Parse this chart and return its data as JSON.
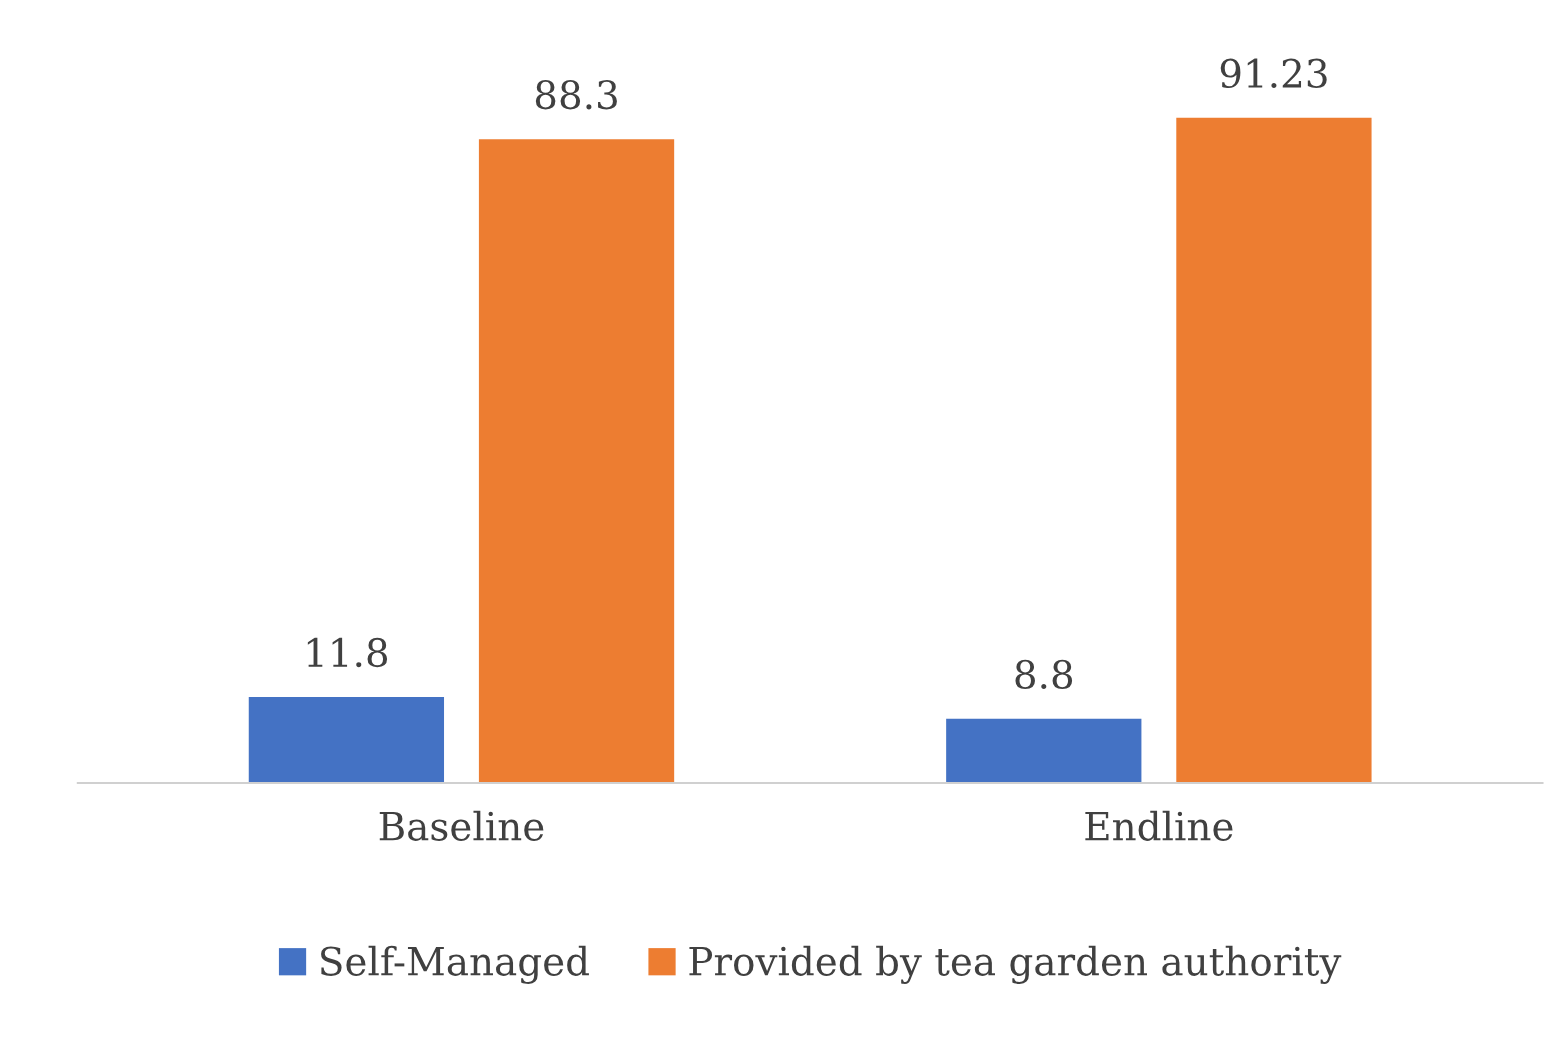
{
  "chart_data": {
    "type": "bar",
    "categories": [
      "Baseline",
      "Endline"
    ],
    "series": [
      {
        "name": "Self-Managed",
        "color": "#4472c4",
        "values": [
          11.8,
          8.8
        ]
      },
      {
        "name": "Provided by tea garden authority",
        "color": "#ed7d31",
        "values": [
          88.3,
          91.23
        ]
      }
    ],
    "data_labels": true,
    "legend": "bottom",
    "grid": false
  }
}
